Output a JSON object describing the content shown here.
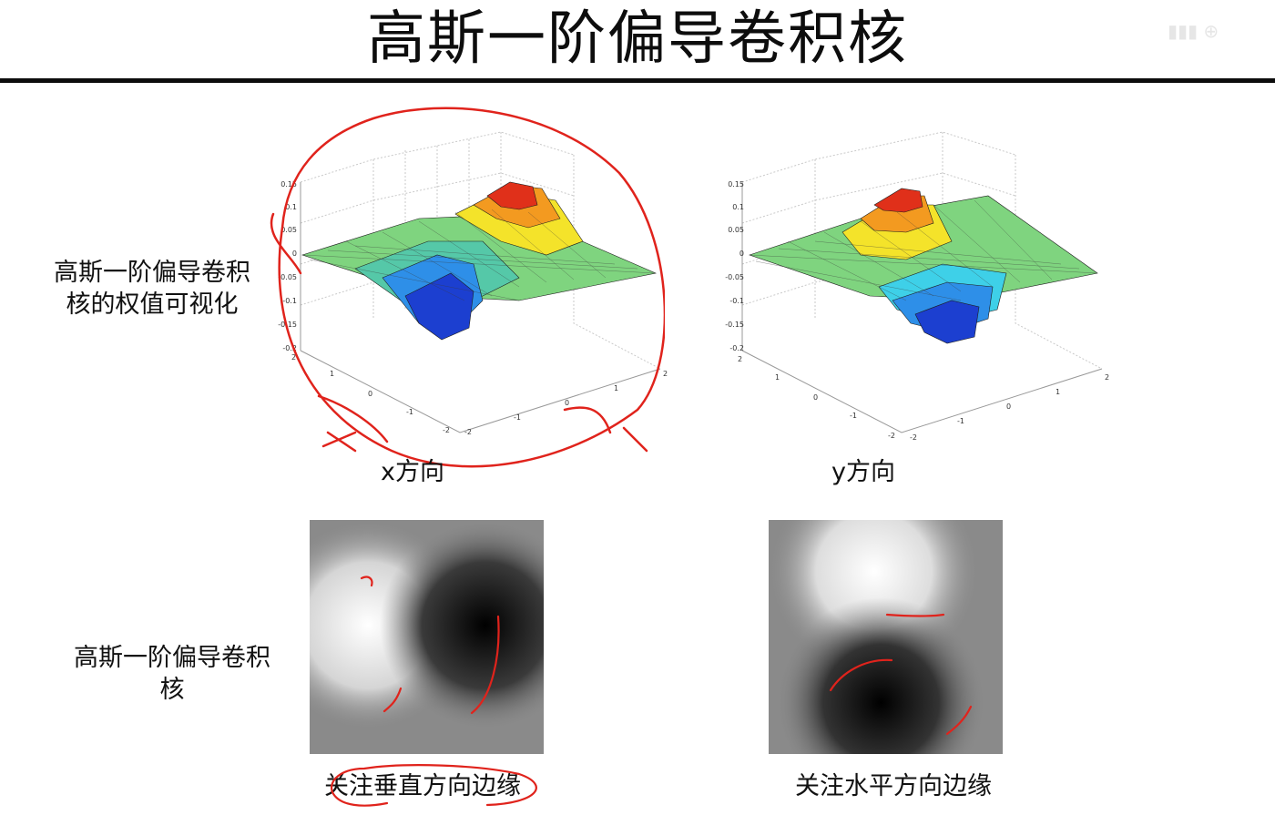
{
  "slide": {
    "title": "高斯一阶偏导卷积核",
    "row1_label": "高斯一阶偏导卷积核的权值可视化",
    "row2_label": "高斯一阶偏导卷积核"
  },
  "plots": [
    {
      "caption": "x方向",
      "z_ticks": [
        "0.15",
        "0.1",
        "0.05",
        "0",
        "-0.05",
        "-0.1",
        "-0.15",
        "-0.2"
      ],
      "y_ticks": [
        "2",
        "1",
        "0",
        "-1",
        "-2"
      ],
      "x_ticks": [
        "-2",
        "-1",
        "0",
        "1",
        "2"
      ]
    },
    {
      "caption": "y方向",
      "z_ticks": [
        "0.15",
        "0.1",
        "0.05",
        "0",
        "-0.05",
        "-0.1",
        "-0.15",
        "-0.2"
      ],
      "y_ticks": [
        "2",
        "1",
        "0",
        "-1",
        "-2"
      ],
      "x_ticks": [
        "-2",
        "-1",
        "0",
        "1",
        "2"
      ]
    }
  ],
  "kernels": [
    {
      "caption": "关注垂直方向边缘"
    },
    {
      "caption": "关注水平方向边缘"
    }
  ],
  "colors": {
    "annotation": "#e0231c",
    "rule": "#0d0d0d"
  }
}
